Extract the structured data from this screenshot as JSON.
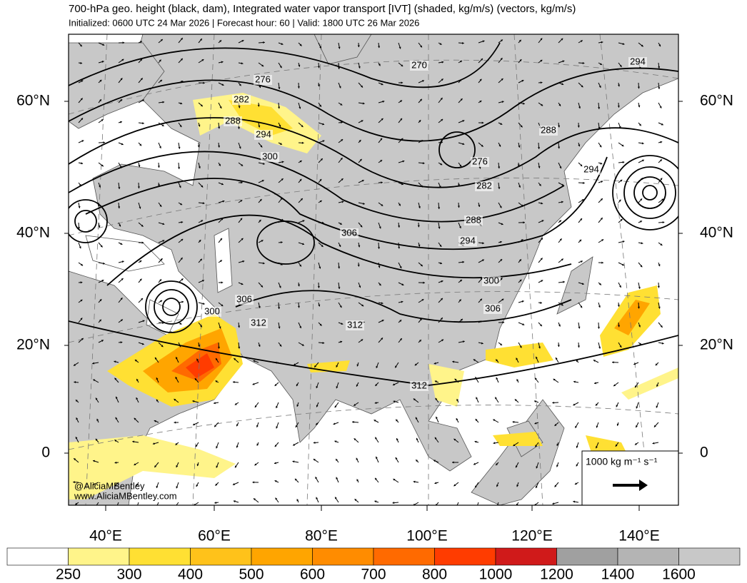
{
  "header": {
    "title": "700-hPa geo. height (black, dam), Integrated water vapor transport [IVT] (shaded, kg/m/s) (vectors, kg/m/s)",
    "subtitle": "Initialized: 0600 UTC 24 Mar 2026 | Forecast hour: 60 | Valid: 1800 UTC 26 Mar 2026"
  },
  "lat_labels": [
    "60°N",
    "40°N",
    "20°N",
    "0"
  ],
  "lon_labels": [
    "40°E",
    "60°E",
    "80°E",
    "100°E",
    "120°E",
    "140°E"
  ],
  "contour_labels": [
    276,
    282,
    288,
    294,
    300,
    306,
    306,
    300,
    312,
    312,
    312,
    270,
    276,
    282,
    288,
    294,
    300,
    306,
    288,
    294,
    294
  ],
  "credits": [
    "@AliciaMBentley",
    "www.AliciaMBentley.com"
  ],
  "reference_vector": "1000 kg m⁻¹ s⁻¹",
  "colorbar": {
    "ticks": [
      250,
      300,
      400,
      500,
      600,
      700,
      800,
      1000,
      1200,
      1400,
      1600
    ],
    "colors": [
      "#ffffff",
      "#fff48a",
      "#ffe033",
      "#ffc21a",
      "#ffa500",
      "#ff8c00",
      "#ff6a00",
      "#ff3c00",
      "#d01a1a",
      "#a0a0a0",
      "#b4b4b4",
      "#c8c8c8"
    ]
  }
}
